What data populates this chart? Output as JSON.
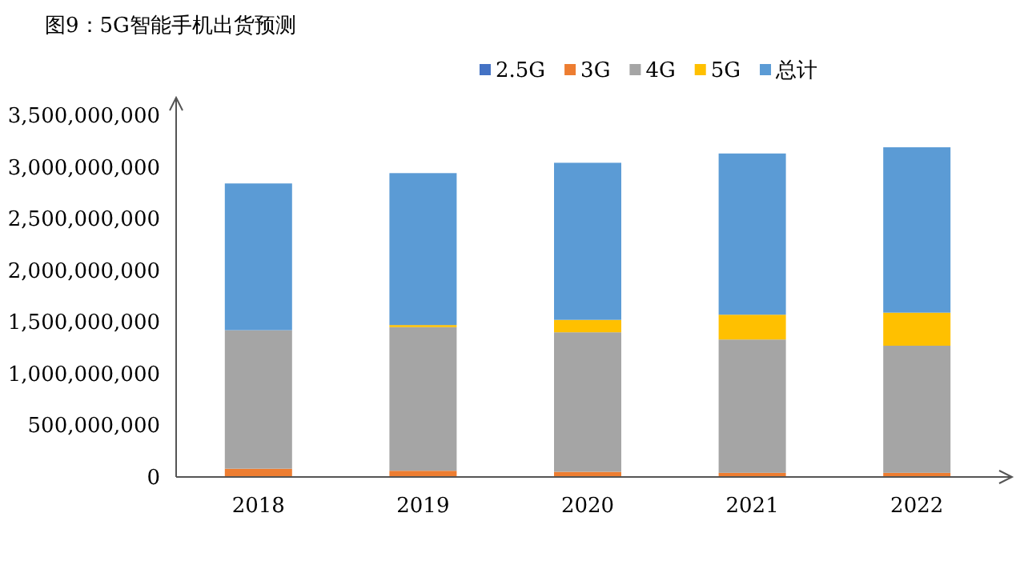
{
  "chart_data": {
    "type": "bar",
    "stacked": true,
    "title": "图9：5G智能手机出货预测",
    "categories": [
      "2018",
      "2019",
      "2020",
      "2021",
      "2022"
    ],
    "series": [
      {
        "name": "2.5G",
        "color": "#4472c4",
        "values": [
          0,
          0,
          0,
          0,
          0
        ]
      },
      {
        "name": "3G",
        "color": "#ed7d31",
        "values": [
          80000000,
          60000000,
          50000000,
          40000000,
          40000000
        ]
      },
      {
        "name": "4G",
        "color": "#a5a5a5",
        "values": [
          1340000000,
          1390000000,
          1350000000,
          1290000000,
          1230000000
        ]
      },
      {
        "name": "5G",
        "color": "#ffc000",
        "values": [
          0,
          20000000,
          120000000,
          240000000,
          320000000
        ]
      },
      {
        "name": "总计",
        "color": "#5b9bd5",
        "values": [
          1420000000,
          1470000000,
          1520000000,
          1560000000,
          1600000000
        ]
      }
    ],
    "ylim": [
      0,
      3500000000
    ],
    "yticks": [
      0,
      {
        "value": 500000000,
        "label": "500,000,000"
      },
      {
        "value": 1000000000,
        "label": "1,000,000,000"
      },
      {
        "value": 1500000000,
        "label": "1,500,000,000"
      },
      {
        "value": 2000000000,
        "label": "2,000,000,000"
      },
      {
        "value": 2500000000,
        "label": "2,500,000,000"
      },
      {
        "value": 3000000000,
        "label": "3,000,000,000"
      },
      {
        "value": 3500000000,
        "label": "3,500,000,000"
      }
    ],
    "grid": false,
    "legend": "top"
  }
}
